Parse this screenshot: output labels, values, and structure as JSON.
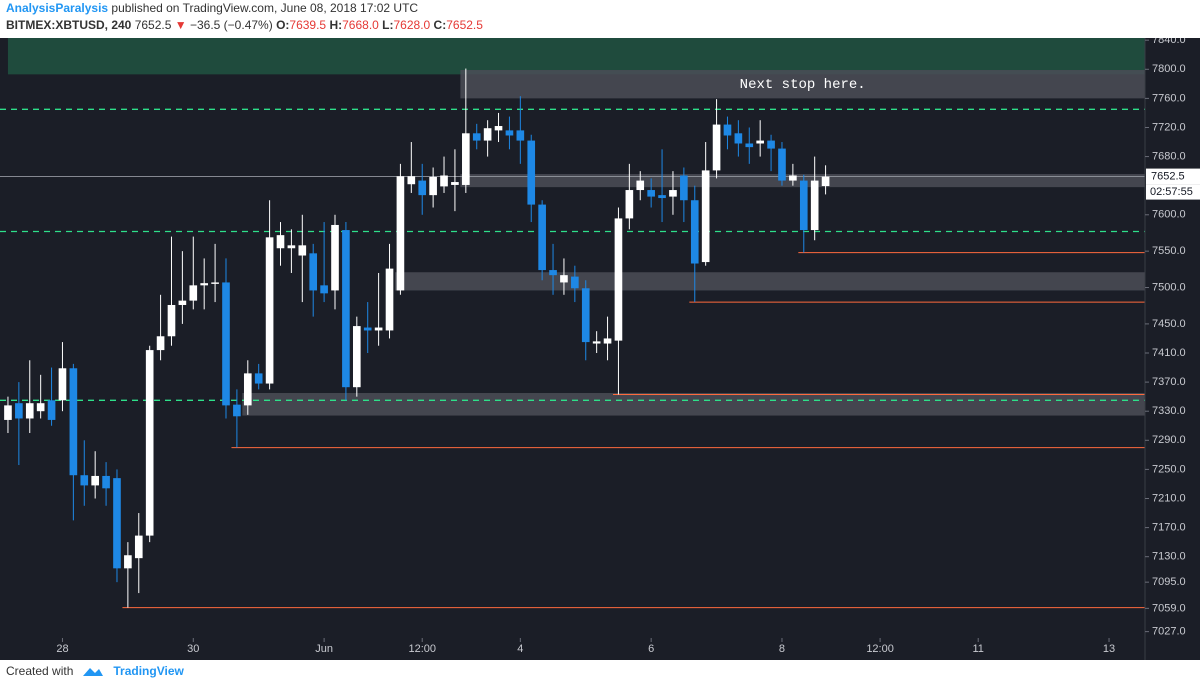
{
  "header": {
    "author": "AnalysisParalysis",
    "published": "published on TradingView.com, June 08, 2018 17:02 UTC",
    "symbol": "BITMEX:XBTUSD, 240",
    "price": "7652.5",
    "arrow": "▼",
    "change": "−36.5 (−0.47%)",
    "ohlc": [
      {
        "label": "O:",
        "value": "7639.5"
      },
      {
        "label": "H:",
        "value": "7668.0"
      },
      {
        "label": "L:",
        "value": "7628.0"
      },
      {
        "label": "C:",
        "value": "7652.5"
      }
    ]
  },
  "footer": {
    "created": "Created with",
    "brand": "TradingView"
  },
  "chart_data": {
    "type": "candlestick",
    "up_color": "#ffffff",
    "down_color": "#1e88e5",
    "open": [
      7318,
      7341,
      7320,
      7330,
      7345,
      7345,
      7389,
      7242,
      7228,
      7241,
      7238,
      7114,
      7128,
      7159,
      7414,
      7433,
      7476,
      7482,
      7503,
      7505,
      7507,
      7339,
      7338,
      7382,
      7368,
      7554,
      7554,
      7544,
      7547,
      7503,
      7496,
      7579,
      7363,
      7445,
      7441,
      7441,
      7496,
      7642,
      7647,
      7627,
      7639,
      7641,
      7641,
      7712,
      7702,
      7716,
      7716,
      7716,
      7702,
      7614,
      7524,
      7507,
      7515,
      7499,
      7423,
      7423,
      7427,
      7595,
      7634,
      7634,
      7627,
      7625,
      7654,
      7620,
      7535,
      7661,
      7724,
      7712,
      7698,
      7698,
      7702,
      7691,
      7647,
      7647,
      7579,
      7639.5
    ],
    "high": [
      7350,
      7370,
      7400,
      7380,
      7390,
      7425,
      7395,
      7290,
      7275,
      7260,
      7250,
      7150,
      7190,
      7420,
      7490,
      7570,
      7550,
      7570,
      7540,
      7560,
      7540,
      7360,
      7400,
      7395,
      7620,
      7590,
      7580,
      7600,
      7560,
      7590,
      7600,
      7590,
      7460,
      7480,
      7520,
      7560,
      7670,
      7700,
      7670,
      7665,
      7680,
      7690,
      7801,
      7725,
      7730,
      7740,
      7735,
      7763,
      7710,
      7620,
      7560,
      7540,
      7530,
      7510,
      7440,
      7460,
      7610,
      7670,
      7660,
      7650,
      7690,
      7660,
      7665,
      7640,
      7700,
      7759,
      7735,
      7730,
      7720,
      7730,
      7710,
      7700,
      7670,
      7655,
      7680,
      7668
    ],
    "low": [
      7300,
      7256,
      7300,
      7320,
      7310,
      7330,
      7180,
      7200,
      7210,
      7200,
      7095,
      7060,
      7080,
      7150,
      7400,
      7420,
      7450,
      7470,
      7470,
      7480,
      7320,
      7280,
      7325,
      7360,
      7360,
      7530,
      7520,
      7480,
      7460,
      7480,
      7470,
      7345,
      7350,
      7410,
      7420,
      7430,
      7490,
      7630,
      7600,
      7610,
      7630,
      7605,
      7630,
      7690,
      7680,
      7700,
      7690,
      7670,
      7590,
      7510,
      7490,
      7490,
      7480,
      7400,
      7410,
      7400,
      7353,
      7580,
      7620,
      7610,
      7590,
      7600,
      7590,
      7480,
      7530,
      7650,
      7690,
      7680,
      7670,
      7680,
      7660,
      7640,
      7640,
      7548,
      7565,
      7628
    ],
    "close": [
      7338,
      7320,
      7341,
      7341,
      7318,
      7389,
      7242,
      7228,
      7241,
      7224,
      7114,
      7132,
      7159,
      7414,
      7433,
      7476,
      7482,
      7503,
      7506,
      7507,
      7338,
      7323,
      7382,
      7368,
      7569,
      7572,
      7558,
      7558,
      7496,
      7492,
      7586,
      7363,
      7447,
      7441,
      7445,
      7526,
      7653,
      7653,
      7627,
      7652,
      7654,
      7645,
      7712,
      7702,
      7719,
      7722,
      7709,
      7702,
      7614,
      7524,
      7517,
      7517,
      7499,
      7425,
      7426,
      7430,
      7595,
      7634,
      7647,
      7625,
      7623,
      7634,
      7620,
      7533,
      7661,
      7724,
      7709,
      7698,
      7693,
      7702,
      7691,
      7647,
      7654,
      7579,
      7647,
      7652.5
    ],
    "xlim": [
      -0.73,
      104.3
    ],
    "xticks": [
      {
        "value": 5,
        "label": "28"
      },
      {
        "value": 17,
        "label": "30"
      },
      {
        "value": 29,
        "label": "Jun"
      },
      {
        "value": 38,
        "label": "12:00"
      },
      {
        "value": 47,
        "label": "4"
      },
      {
        "value": 59,
        "label": "6"
      },
      {
        "value": 71,
        "label": "8"
      },
      {
        "value": 80,
        "label": "12:00"
      },
      {
        "value": 89,
        "label": "11"
      },
      {
        "value": 101,
        "label": "13"
      }
    ],
    "ylim": [
      6988,
      7843
    ],
    "yticks": [
      {
        "value": 7840,
        "label": "7840.0"
      },
      {
        "value": 7800,
        "label": "7800.0"
      },
      {
        "value": 7760,
        "label": "7760.0"
      },
      {
        "value": 7720,
        "label": "7720.0"
      },
      {
        "value": 7680,
        "label": "7680.0"
      },
      {
        "value": 7600,
        "label": "7600.0"
      },
      {
        "value": 7550,
        "label": "7550.0"
      },
      {
        "value": 7500,
        "label": "7500.0"
      },
      {
        "value": 7450,
        "label": "7450.0"
      },
      {
        "value": 7410,
        "label": "7410.0"
      },
      {
        "value": 7370,
        "label": "7370.0"
      },
      {
        "value": 7330,
        "label": "7330.0"
      },
      {
        "value": 7290,
        "label": "7290.0"
      },
      {
        "value": 7250,
        "label": "7250.0"
      },
      {
        "value": 7210,
        "label": "7210.0"
      },
      {
        "value": 7170,
        "label": "7170.0"
      },
      {
        "value": 7130,
        "label": "7130.0"
      },
      {
        "value": 7095,
        "label": "7095.0"
      },
      {
        "value": 7059,
        "label": "7059.0"
      },
      {
        "value": 7027,
        "label": "7027.0"
      }
    ],
    "top_zone": {
      "low": 7793,
      "high": 7843,
      "color": "#1f4b3d"
    },
    "zones": [
      {
        "low": 7760,
        "high": 7799,
        "start": 42,
        "label": "Next stop here."
      },
      {
        "low": 7638,
        "high": 7656,
        "start": 42
      },
      {
        "low": 7496,
        "high": 7521,
        "start": 36
      },
      {
        "low": 7324,
        "high": 7355,
        "start": 22
      }
    ],
    "zone_color": "#4b4e57",
    "dashed_levels": [
      7745,
      7577,
      7345
    ],
    "dashed_color": "#2ee08a",
    "support_lines": [
      {
        "value": 7548,
        "start": 73
      },
      {
        "value": 7480,
        "start": 63
      },
      {
        "value": 7353,
        "start": 56
      },
      {
        "value": 7280,
        "start": 21
      },
      {
        "value": 7060,
        "start": 11
      }
    ],
    "support_color": "#ff6a3d",
    "last_price": {
      "value": 7652.5,
      "countdown": "02:57:55"
    }
  }
}
